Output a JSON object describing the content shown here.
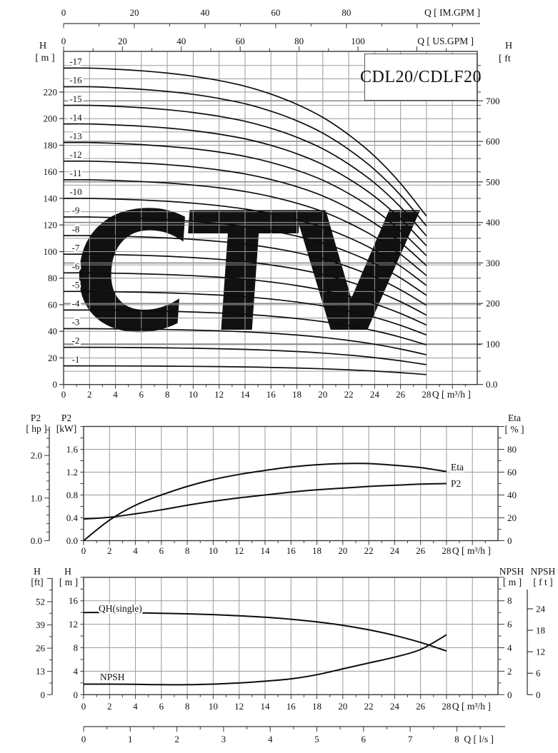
{
  "title_box": "CDL20/CDLF20",
  "watermark": "CTV",
  "colors": {
    "curve": "#0d0d0d",
    "grid_minor": "#9a9a9a",
    "grid_major": "#7d7d7d",
    "axis": "#3a3a3a",
    "watermark": "#c3daee",
    "text": "#111111"
  },
  "chart_data": [
    {
      "type": "line",
      "name": "multi-stage-head-curves",
      "title": "CDL20/CDLF20",
      "x_m3h": [
        0,
        2,
        4,
        6,
        8,
        10,
        12,
        14,
        16,
        18,
        20,
        22,
        24,
        26,
        28
      ],
      "single_stage_head_m": [
        14.0,
        14.0,
        13.95,
        13.88,
        13.78,
        13.64,
        13.45,
        13.2,
        12.85,
        12.4,
        11.82,
        11.05,
        10.1,
        8.9,
        7.45
      ],
      "stage_labels": [
        "-1",
        "-2",
        "-3",
        "-4",
        "-5",
        "-6",
        "-7",
        "-8",
        "-9",
        "-10",
        "-11",
        "-12",
        "-13",
        "-14",
        "-15",
        "-16",
        "-17"
      ],
      "axes": {
        "x_bottom": {
          "label": "Q [ m³/h ]",
          "ticks": [
            "0",
            "2",
            "4",
            "6",
            "8",
            "10",
            "12",
            "14",
            "16",
            "18",
            "20",
            "22",
            "24",
            "26",
            "28"
          ]
        },
        "x_top_im": {
          "label": "Q [ IM.GPM ]",
          "ticks": [
            "0",
            "20",
            "40",
            "60",
            "80"
          ]
        },
        "x_top_us": {
          "label": "Q [ US.GPM ]",
          "ticks": [
            "0",
            "20",
            "40",
            "60",
            "80",
            "100"
          ]
        },
        "y_left": {
          "label_1": "H",
          "label_2": "[ m ]",
          "ticks": [
            "0",
            "20",
            "40",
            "60",
            "80",
            "100",
            "120",
            "140",
            "160",
            "180",
            "200",
            "220"
          ],
          "range": [
            0,
            250
          ]
        },
        "y_right": {
          "label_1": "H",
          "label_2": "[ ft",
          "ticks": [
            "0.0",
            "100",
            "200",
            "300",
            "400",
            "500",
            "600",
            "700"
          ]
        }
      }
    },
    {
      "type": "line",
      "name": "power-efficiency-curves",
      "x_m3h": [
        0,
        2,
        4,
        6,
        8,
        10,
        12,
        14,
        16,
        18,
        20,
        22,
        24,
        26,
        28
      ],
      "series": [
        {
          "name": "Eta",
          "unit": "%",
          "values": [
            0,
            18,
            31,
            40,
            47.5,
            53.5,
            58,
            61.5,
            64.5,
            66.5,
            67.5,
            67.5,
            66,
            64,
            60.5
          ]
        },
        {
          "name": "P2",
          "unit": "kW",
          "values": [
            0.38,
            0.41,
            0.47,
            0.54,
            0.62,
            0.69,
            0.75,
            0.8,
            0.85,
            0.89,
            0.92,
            0.95,
            0.97,
            0.99,
            1.0
          ]
        }
      ],
      "axes": {
        "x_bottom": {
          "label": "Q [ m³/h ]",
          "ticks": [
            "0",
            "2",
            "4",
            "6",
            "8",
            "10",
            "12",
            "14",
            "16",
            "18",
            "20",
            "22",
            "24",
            "26",
            "28"
          ]
        },
        "y_left_hp": {
          "label_1": "P2",
          "label_2": "[ hp ]",
          "ticks": [
            "0.0",
            "1.0",
            "2.0"
          ]
        },
        "y_left_kw": {
          "label_1": "P2",
          "label_2": "[kW]",
          "ticks": [
            "0.0",
            "0.4",
            "0.8",
            "1.2",
            "1.6"
          ],
          "range": [
            0,
            2.0
          ]
        },
        "y_right_eta": {
          "label_1": "Eta",
          "label_2": "[ % ]",
          "ticks": [
            "0",
            "20",
            "40",
            "60",
            "80"
          ],
          "range": [
            0,
            100
          ]
        }
      },
      "curve_labels": [
        "Eta",
        "P2"
      ]
    },
    {
      "type": "line",
      "name": "single-stage-head-npsh-curves",
      "x_m3h": [
        0,
        2,
        4,
        6,
        8,
        10,
        12,
        14,
        16,
        18,
        20,
        22,
        24,
        26,
        28
      ],
      "series": [
        {
          "name": "QH(single)",
          "unit": "m",
          "values": [
            14.0,
            14.0,
            13.95,
            13.88,
            13.78,
            13.64,
            13.45,
            13.2,
            12.85,
            12.4,
            11.82,
            11.05,
            10.1,
            8.9,
            7.45
          ]
        },
        {
          "name": "NPSH",
          "unit": "m NPSH",
          "values": [
            0.9,
            0.9,
            0.88,
            0.85,
            0.85,
            0.9,
            1.0,
            1.15,
            1.35,
            1.7,
            2.2,
            2.7,
            3.2,
            3.85,
            5.1
          ]
        }
      ],
      "axes": {
        "x_bottom_m3h": {
          "label": "Q [ m³/h ]",
          "ticks": [
            "0",
            "2",
            "4",
            "6",
            "8",
            "10",
            "12",
            "14",
            "16",
            "18",
            "20",
            "22",
            "24",
            "26",
            "28"
          ]
        },
        "x_bottom_ls": {
          "label": "Q [ l/s ]",
          "ticks": [
            "0",
            "1",
            "2",
            "3",
            "4",
            "5",
            "6",
            "7",
            "8"
          ]
        },
        "y_left_ft": {
          "label_1": "H",
          "label_2": "[ft]",
          "ticks": [
            "0",
            "13",
            "26",
            "39",
            "52"
          ]
        },
        "y_left_m": {
          "label_1": "H",
          "label_2": "[ m ]",
          "ticks": [
            "0",
            "4",
            "8",
            "12",
            "16"
          ],
          "range": [
            0,
            20
          ]
        },
        "y_right_npsh_m": {
          "label_1": "NPSH",
          "label_2": "[ m ]",
          "ticks": [
            "0",
            "2",
            "4",
            "6",
            "8"
          ],
          "range": [
            0,
            10
          ]
        },
        "y_right_npsh_ft": {
          "label_1": "NPSH",
          "label_2": "[ f t ]",
          "ticks": [
            "0",
            "6",
            "12",
            "18",
            "24"
          ]
        }
      },
      "curve_labels": [
        "QH(single)",
        "NPSH"
      ]
    }
  ]
}
